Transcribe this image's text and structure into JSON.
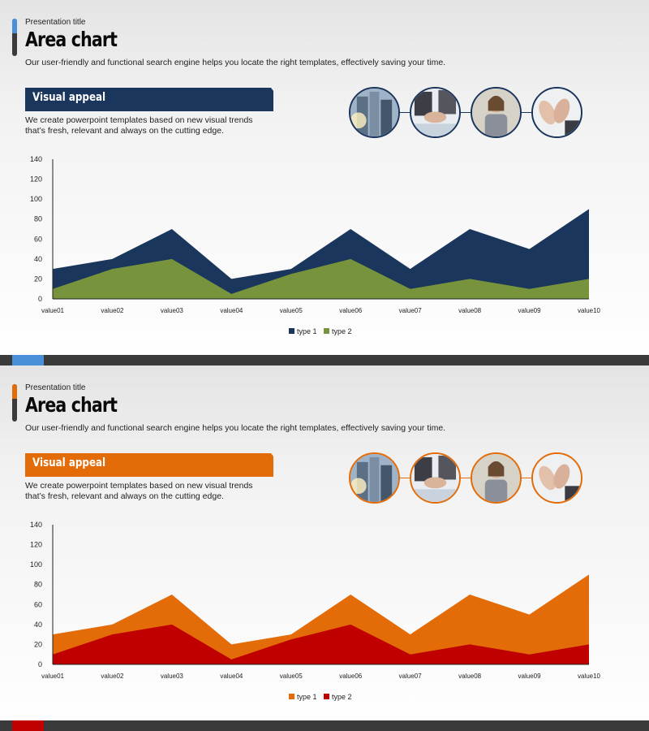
{
  "slides": [
    {
      "presentation_title": "Presentation title",
      "title": "Area chart",
      "subtitle": "Our user-friendly and functional search engine helps you locate the right templates, effectively saving your time.",
      "banner_label": "Visual appeal",
      "description": "We create powerpoint templates based on new visual trends that’s fresh, relevant and always on the cutting edge.",
      "colors": {
        "accent": "#1b365d",
        "series1": "#1b365d",
        "series2": "#77933c",
        "title_accent": "#4a90d9",
        "footer_accent": "#4a90d9",
        "ring": "#1b365d"
      }
    },
    {
      "presentation_title": "Presentation title",
      "title": "Area chart",
      "subtitle": "Our user-friendly and functional search engine helps you locate the right templates, effectively saving your time.",
      "banner_label": "Visual appeal",
      "description": "We create powerpoint templates based on new visual trends that’s fresh, relevant and always on the cutting edge.",
      "colors": {
        "accent": "#e36c09",
        "series1": "#e36c09",
        "series2": "#c00000",
        "title_accent": "#e36c09",
        "footer_accent": "#c00000",
        "ring": "#e36c09"
      }
    }
  ],
  "photos": [
    "city-buildings-photo",
    "business-handshake-photo",
    "businesswoman-phone-photo",
    "applause-hands-photo"
  ],
  "chart_data": [
    {
      "type": "area",
      "categories": [
        "value01",
        "value02",
        "value03",
        "value04",
        "value05",
        "value06",
        "value07",
        "value08",
        "value09",
        "value10"
      ],
      "series": [
        {
          "name": "type 1",
          "values": [
            30,
            40,
            70,
            20,
            30,
            70,
            30,
            70,
            50,
            90
          ]
        },
        {
          "name": "type 2",
          "values": [
            10,
            30,
            40,
            5,
            25,
            40,
            10,
            20,
            10,
            20
          ]
        }
      ],
      "yticks": [
        0,
        20,
        40,
        60,
        80,
        100,
        120,
        140
      ],
      "ylim": [
        0,
        140
      ],
      "legend": "bottom"
    },
    {
      "type": "area",
      "categories": [
        "value01",
        "value02",
        "value03",
        "value04",
        "value05",
        "value06",
        "value07",
        "value08",
        "value09",
        "value10"
      ],
      "series": [
        {
          "name": "type 1",
          "values": [
            30,
            40,
            70,
            20,
            30,
            70,
            30,
            70,
            50,
            90
          ]
        },
        {
          "name": "type 2",
          "values": [
            10,
            30,
            40,
            5,
            25,
            40,
            10,
            20,
            10,
            20
          ]
        }
      ],
      "yticks": [
        0,
        20,
        40,
        60,
        80,
        100,
        120,
        140
      ],
      "ylim": [
        0,
        140
      ],
      "legend": "bottom"
    }
  ]
}
